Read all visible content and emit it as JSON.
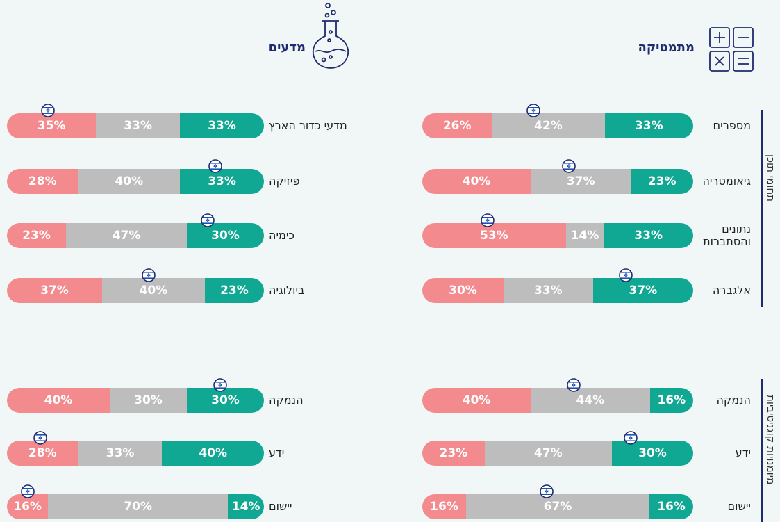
{
  "columns": [
    {
      "title": "מתמטיקה"
    },
    {
      "title": "מדעים"
    }
  ],
  "groups": [
    "תחומי תוכן",
    "מיומנויות קוגניטיביות"
  ],
  "chart_data": [
    {
      "type": "bar",
      "orientation": "horizontal",
      "stacked": true,
      "categories": [
        "מספרים",
        "גיאומטריה",
        "נתונים והסתברות",
        "אלגברה"
      ],
      "series": [
        {
          "color": "#10a892",
          "values": [
            33,
            23,
            33,
            37
          ],
          "value_labels": [
            "33%",
            "23%",
            "33%",
            "37%"
          ]
        },
        {
          "color": "#bdbdbd",
          "values": [
            42,
            37,
            14,
            33
          ],
          "value_labels": [
            "42%",
            "37%",
            "14%",
            "33%"
          ]
        },
        {
          "color": "#f28a8e",
          "values": [
            26,
            40,
            53,
            30
          ],
          "value_labels": [
            "26%",
            "40%",
            "53%",
            "30%"
          ]
        }
      ],
      "markers": [
        59,
        46,
        76,
        25
      ]
    },
    {
      "type": "bar",
      "orientation": "horizontal",
      "stacked": true,
      "categories": [
        "מדעי כדור הארץ",
        "פיזיקה",
        "כימיה",
        "ביולוגיה"
      ],
      "series": [
        {
          "color": "#10a892",
          "values": [
            33,
            33,
            30,
            23
          ],
          "value_labels": [
            "33%",
            "33%",
            "30%",
            "23%"
          ]
        },
        {
          "color": "#bdbdbd",
          "values": [
            33,
            40,
            47,
            40
          ],
          "value_labels": [
            "33%",
            "40%",
            "47%",
            "40%"
          ]
        },
        {
          "color": "#f28a8e",
          "values": [
            35,
            28,
            23,
            37
          ],
          "value_labels": [
            "35%",
            "28%",
            "23%",
            "37%"
          ]
        }
      ],
      "markers": [
        84,
        19,
        22,
        45
      ]
    },
    {
      "type": "bar",
      "orientation": "horizontal",
      "stacked": true,
      "categories": [
        "הנמקה",
        "ידע",
        "יישום"
      ],
      "series": [
        {
          "color": "#10a892",
          "values": [
            16,
            30,
            16
          ],
          "value_labels": [
            "16%",
            "30%",
            "16%"
          ]
        },
        {
          "color": "#bdbdbd",
          "values": [
            44,
            47,
            67
          ],
          "value_labels": [
            "44%",
            "47%",
            "67%"
          ]
        },
        {
          "color": "#f28a8e",
          "values": [
            40,
            23,
            16
          ],
          "value_labels": [
            "40%",
            "23%",
            "16%"
          ]
        }
      ],
      "markers": [
        44,
        23,
        54
      ]
    },
    {
      "type": "bar",
      "orientation": "horizontal",
      "stacked": true,
      "categories": [
        "הנמקה",
        "ידע",
        "יישום"
      ],
      "series": [
        {
          "color": "#10a892",
          "values": [
            30,
            40,
            14
          ],
          "value_labels": [
            "30%",
            "40%",
            "14%"
          ]
        },
        {
          "color": "#bdbdbd",
          "values": [
            30,
            33,
            70
          ],
          "value_labels": [
            "30%",
            "33%",
            "70%"
          ]
        },
        {
          "color": "#f28a8e",
          "values": [
            40,
            28,
            16
          ],
          "value_labels": [
            "40%",
            "28%",
            "16%"
          ]
        }
      ],
      "markers": [
        17,
        87,
        92
      ]
    }
  ]
}
